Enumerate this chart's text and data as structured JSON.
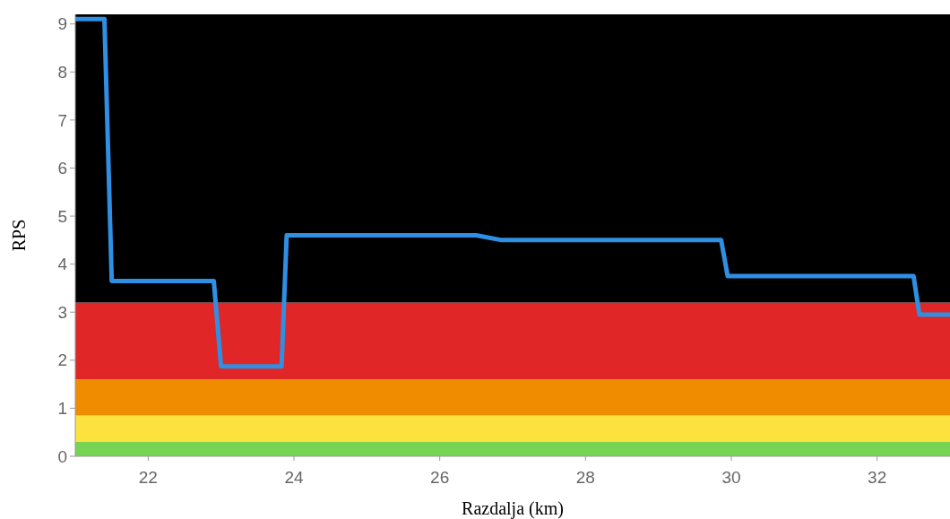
{
  "chart_data": {
    "type": "line",
    "xlabel": "Razdalja (km)",
    "ylabel": "RPS",
    "xlim": [
      21,
      33
    ],
    "ylim": [
      0,
      9.2
    ],
    "xticks": [
      22,
      24,
      26,
      28,
      30,
      32
    ],
    "yticks": [
      0,
      1,
      2,
      3,
      4,
      5,
      6,
      7,
      8,
      9
    ],
    "marker": "none",
    "line_style": "solid",
    "bands": [
      {
        "axis": "y",
        "from": 0,
        "to": 0.3,
        "color": "#77d353"
      },
      {
        "axis": "y",
        "from": 0.3,
        "to": 0.85,
        "color": "#fde13f"
      },
      {
        "axis": "y",
        "from": 0.85,
        "to": 1.6,
        "color": "#ef8c00"
      },
      {
        "axis": "y",
        "from": 1.6,
        "to": 3.2,
        "color": "#e02626"
      },
      {
        "axis": "y",
        "from": 3.2,
        "to": 9.2,
        "color": "#000000"
      }
    ],
    "series": [
      {
        "color": "#2f8fe3",
        "x": [
          21,
          21.4,
          21.5,
          22.9,
          23.0,
          23.83,
          23.9,
          26.5,
          26.85,
          29.86,
          29.95,
          32.5,
          32.58,
          33
        ],
        "values": [
          9.1,
          9.1,
          3.65,
          3.65,
          1.87,
          1.87,
          4.6,
          4.6,
          4.5,
          4.5,
          3.75,
          3.75,
          2.95,
          2.95
        ]
      }
    ]
  }
}
